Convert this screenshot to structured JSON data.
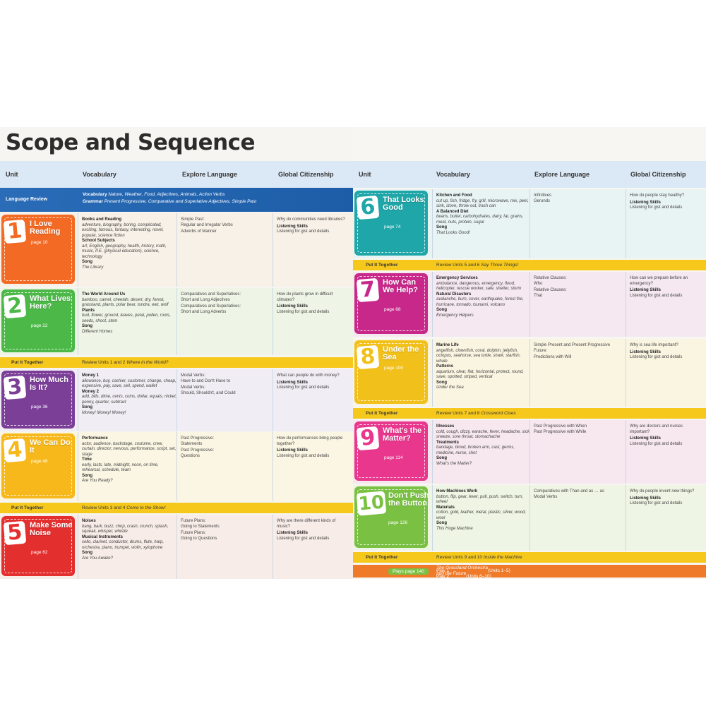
{
  "title": "Scope and Sequence",
  "headers": {
    "unit": "Unit",
    "vocabulary": "Vocabulary",
    "explore": "Explore Language",
    "global": "Global Citizenship"
  },
  "language_review": {
    "label": "Language Review",
    "vocab_label": "Vocabulary",
    "vocab_text": "Nature, Weather, Food, Adjectives, Animals, Action Verbs",
    "grammar_label": "Grammar",
    "grammar_text": "Present Progressive, Comparative and Superlative Adjectives, Simple Past"
  },
  "put_together_label": "Put It Together",
  "put_together": [
    {
      "review": "Review Units 1 and 2",
      "activity": "Where in the World?"
    },
    {
      "review": "Review Units 3 and 4",
      "activity": "Come to the Show!"
    },
    {
      "review": "Review Units 5 and 6",
      "activity": "Say Three Things!"
    },
    {
      "review": "Review Units 7 and 8",
      "activity": "Crossword Clues"
    },
    {
      "review": "Review Units 9 and 10",
      "activity": "Inside the Machine"
    }
  ],
  "plays": {
    "label": "Plays page 140",
    "play1_prefix": "Play 1",
    "play1_title": "The Grassland Orchestra",
    "play1_units": "(Units 1–5)",
    "play2_prefix": "Play 2",
    "play2_title": "Into the Future",
    "play2_units": "(Units 6–10)"
  },
  "units": [
    {
      "num": "1",
      "title": "I Love Reading",
      "page": "page 10",
      "vocab": [
        {
          "h": "Books and Reading",
          "t": "adventure, biography, boring, complicated, exciting, famous, fantasy, interesting, novel, popular, science fiction"
        },
        {
          "h": "School Subjects",
          "t": "art, English, geography, health, history, math, music, P.E. (physical education), science, technology"
        },
        {
          "h": "Song",
          "t": "The Library",
          "i": true
        }
      ],
      "explore": [
        "Simple Past:",
        "Regular and Irregular Verbs",
        "Adverbs of Manner"
      ],
      "global": {
        "q": "Why do communities need libraries?",
        "h": "Listening Skills",
        "t": "Listening for gist and details"
      }
    },
    {
      "num": "2",
      "title": "What Lives Here?",
      "page": "page 22",
      "vocab": [
        {
          "h": "The World Around Us",
          "t": "bamboo, camel, cheetah, desert, dry, forest, grassland, plants, polar bear, tundra, wet, wolf"
        },
        {
          "h": "Plants",
          "t": "bud, flower, ground, leaves, petal, pollen, roots, seeds, shoot, stem"
        },
        {
          "h": "Song",
          "t": "Different Homes",
          "i": true
        }
      ],
      "explore": [
        "Comparatives and Superlatives:",
        "Short and Long Adjectives",
        "Comparatives and Superlatives:",
        "Short and Long Adverbs"
      ],
      "global": {
        "q": "How do plants grow in difficult climates?",
        "h": "Listening Skills",
        "t": "Listening for gist and details"
      }
    },
    {
      "num": "3",
      "title": "How Much Is It?",
      "page": "page 36",
      "vocab": [
        {
          "h": "Money 1",
          "t": "allowance, buy, cashier, customer, change, cheap, expensive, pay, save, sell, spend, wallet"
        },
        {
          "h": "Money 2",
          "t": "add, bills, dime, cents, coins, dollar, equals, nickel, penny, quarter, subtract"
        },
        {
          "h": "Song",
          "t": "Money! Money! Money!",
          "i": true
        }
      ],
      "explore": [
        "Modal Verbs:",
        "Have to and Don't Have to",
        "Modal Verbs:",
        "Should, Shouldn't, and Could"
      ],
      "global": {
        "q": "What can people do with money?",
        "h": "Listening Skills",
        "t": "Listening for gist and details"
      }
    },
    {
      "num": "4",
      "title": "We Can Do It",
      "page": "page 48",
      "vocab": [
        {
          "h": "Performance",
          "t": "actor, audience, backstage, costume, crew, curtain, director, nervous, performance, script, set, stage"
        },
        {
          "h": "Time",
          "t": "early, lasts, late, midnight, noon, on time, rehearsal, schedule, team"
        },
        {
          "h": "Song",
          "t": "Are You Ready?",
          "i": true
        }
      ],
      "explore": [
        "Past Progressive:",
        "Statements",
        "Past Progressive:",
        "Questions"
      ],
      "global": {
        "q": "How do performances bring people together?",
        "h": "Listening Skills",
        "t": "Listening for gist and details"
      }
    },
    {
      "num": "5",
      "title": "Make Some Noise",
      "page": "page 62",
      "vocab": [
        {
          "h": "Noises",
          "t": "bang, bark, buzz, chirp, crash, crunch, splash, squeak, whisper, whistle"
        },
        {
          "h": "Musical Instruments",
          "t": "cello, clarinet, conductor, drums, flute, harp, orchestra, piano, trumpet, violin, xylophone"
        },
        {
          "h": "Song",
          "t": "Are You Awake?",
          "i": true
        }
      ],
      "explore": [
        "Future Plans:",
        "Going to Statements",
        "Future Plans:",
        "Going to Questions"
      ],
      "global": {
        "q": "Why are there different kinds of music?",
        "h": "Listening Skills",
        "t": "Listening for gist and details"
      }
    },
    {
      "num": "6",
      "title": "That Looks Good",
      "page": "page 74",
      "vocab": [
        {
          "h": "Kitchen and Food",
          "t": "cut up, fish, fridge, fry, grill, microwave, mix, peel, sink, stove, throw out, trash can"
        },
        {
          "h": "A Balanced Diet",
          "t": "beans, butter, carbohydrates, dairy, fat, grains, meat, nuts, protein, sugar"
        },
        {
          "h": "Song",
          "t": "That Looks Good!",
          "i": true
        }
      ],
      "explore": [
        "Infinitives",
        "Gerunds"
      ],
      "global": {
        "q": "How do people stay healthy?",
        "h": "Listening Skills",
        "t": "Listening for gist and details"
      }
    },
    {
      "num": "7",
      "title": "How Can We Help?",
      "page": "page 88",
      "vocab": [
        {
          "h": "Emergency Services",
          "t": "ambulance, dangerous, emergency, flood, helicopter, rescue worker, safe, shelter, storm"
        },
        {
          "h": "Natural Disasters",
          "t": "avalanche, burn, cover, earthquake, forest fire, hurricane, tornado, tsunami, volcano"
        },
        {
          "h": "Song",
          "t": "Emergency Helpers",
          "i": true
        }
      ],
      "explore": [
        "Relative Clauses:",
        "Who",
        "Relative Clauses:",
        "That"
      ],
      "global": {
        "q": "How can we prepare before an emergency?",
        "h": "Listening Skills",
        "t": "Listening for gist and details"
      }
    },
    {
      "num": "8",
      "title": "Under the Sea",
      "page": "page 100",
      "vocab": [
        {
          "h": "Marine Life",
          "t": "angelfish, clownfish, coral, dolphin, jellyfish, octopus, seahorse, sea turtle, shark, starfish, whale"
        },
        {
          "h": "Patterns",
          "t": "aquarium, clear, flat, horizontal, protect, round, save, spotted, striped, vertical"
        },
        {
          "h": "Song",
          "t": "Under the Sea",
          "i": true
        }
      ],
      "explore": [
        "Simple Present and Present Progressive",
        "Future:",
        "Predictions with Will"
      ],
      "global": {
        "q": "Why is sea life important?",
        "h": "Listening Skills",
        "t": "Listening for gist and details"
      }
    },
    {
      "num": "9",
      "title": "What's the Matter?",
      "page": "page 114",
      "vocab": [
        {
          "h": "Illnesses",
          "t": "cold, cough, dizzy, earache, fever, headache, sick, sneeze, sore throat, stomachache"
        },
        {
          "h": "Treatments",
          "t": "bandage, blood, broken arm, cast, germs, medicine, nurse, shot"
        },
        {
          "h": "Song",
          "t": "What's the Matter?",
          "i": true
        }
      ],
      "explore": [
        "Past Progressive with When",
        "Past Progressive with While"
      ],
      "global": {
        "q": "Why are doctors and nurses important?",
        "h": "Listening Skills",
        "t": "Listening for gist and details"
      }
    },
    {
      "num": "10",
      "title": "Don't Push the Button",
      "page": "page 126",
      "vocab": [
        {
          "h": "How Machines Work",
          "t": "button, flip, gear, lever, pull, push, switch, turn, wheel"
        },
        {
          "h": "Materials",
          "t": "cotton, gold, leather, metal, plastic, silver, wood, wool"
        },
        {
          "h": "Song",
          "t": "This Huge Machine",
          "i": true
        }
      ],
      "explore": [
        "Comparatives with Than and as … as",
        "Modal Verbs"
      ],
      "global": {
        "q": "Why do people invent new things?",
        "h": "Listening Skills",
        "t": "Listening for gist and details"
      }
    }
  ],
  "colors": {
    "u1": "#f26a24",
    "u2": "#4cb848",
    "u3": "#7b3f98",
    "u4": "#f6b81a",
    "u5": "#e42f2f",
    "u6": "#1fa6a8",
    "u7": "#c8288a",
    "u8": "#f2c01a",
    "u9": "#e8378c",
    "u10": "#7ac143",
    "lang_review": "#1f62ad",
    "put_together": "#f6c81c",
    "header": "#dbe8f5",
    "plays": "#ef7a2a"
  }
}
